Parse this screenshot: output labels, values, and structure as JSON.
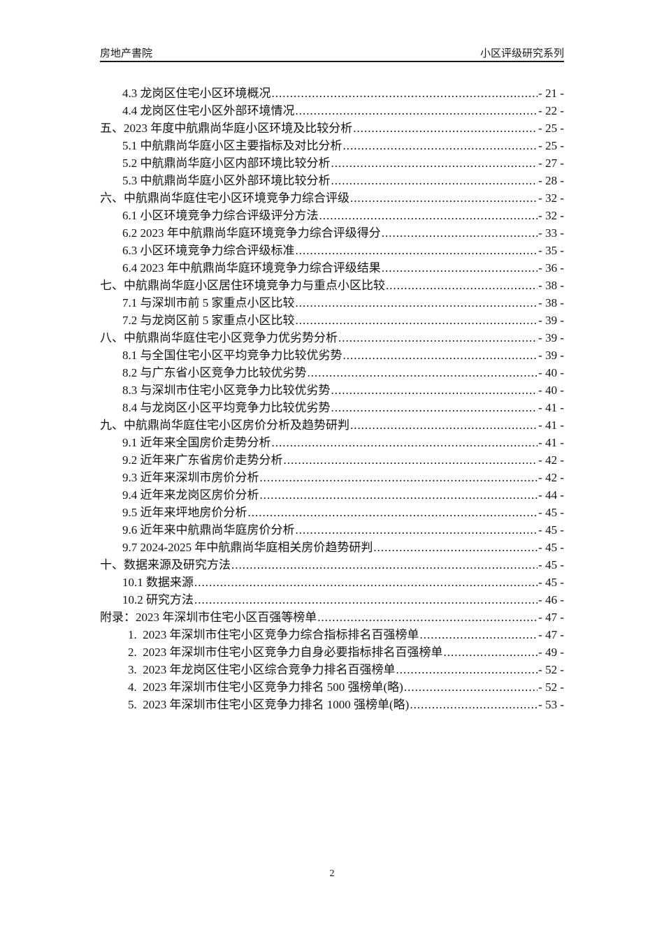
{
  "colors": {
    "background": "#ffffff",
    "text": "#111111",
    "header_rule": "#1a1a1a"
  },
  "header": {
    "left_text": "房地产書院",
    "right_text": "小区评级研究系列"
  },
  "footer": {
    "page_number": "2"
  },
  "toc": {
    "entries": [
      {
        "level": 2,
        "label": "4.3 龙岗区住宅小区环境概况",
        "page": "- 21 -"
      },
      {
        "level": 2,
        "label": "4.4 龙岗区住宅小区外部环境情况",
        "page": "- 22 -"
      },
      {
        "level": 1,
        "label": "五、2023 年度中航鼎尚华庭小区环境及比较分析",
        "page": "- 25 -"
      },
      {
        "level": 2,
        "label": "5.1 中航鼎尚华庭小区主要指标及对比分析",
        "page": "- 25 -"
      },
      {
        "level": 2,
        "label": "5.2 中航鼎尚华庭小区内部环境比较分析",
        "page": "- 27 -"
      },
      {
        "level": 2,
        "label": "5.3 中航鼎尚华庭小区外部环境比较分析",
        "page": "- 28 -"
      },
      {
        "level": 1,
        "label": "六、中航鼎尚华庭住宅小区环境竞争力综合评级",
        "page": "- 32 -"
      },
      {
        "level": 2,
        "label": "6.1 小区环境竞争力综合评级评分方法",
        "page": "- 32 -"
      },
      {
        "level": 2,
        "label": "6.2 2023 年中航鼎尚华庭环境竞争力综合评级得分",
        "page": "- 33 -"
      },
      {
        "level": 2,
        "label": "6.3 小区环境竞争力综合评级标准",
        "page": "- 35 -"
      },
      {
        "level": 2,
        "label": "6.4 2023 年中航鼎尚华庭环境竞争力综合评级结果",
        "page": "- 36 -"
      },
      {
        "level": 1,
        "label": "七、中航鼎尚华庭小区居住环境竞争力与重点小区比较",
        "page": "- 38 -"
      },
      {
        "level": 2,
        "label": "7.1 与深圳市前 5 家重点小区比较",
        "page": "- 38 -"
      },
      {
        "level": 2,
        "label": "7.2 与龙岗区前 5 家重点小区比较",
        "page": "- 39 -"
      },
      {
        "level": 1,
        "label": "八、中航鼎尚华庭住宅小区竞争力优劣势分析",
        "page": "- 39 -"
      },
      {
        "level": 2,
        "label": "8.1 与全国住宅小区平均竞争力比较优劣势",
        "page": "- 39 -"
      },
      {
        "level": 2,
        "label": "8.2 与广东省小区竞争力比较优劣势",
        "page": "- 40 -"
      },
      {
        "level": 2,
        "label": "8.3 与深圳市住宅小区竞争力比较优劣势",
        "page": "- 40 -"
      },
      {
        "level": 2,
        "label": "8.4 与龙岗区小区平均竞争力比较优劣势",
        "page": "- 41 -"
      },
      {
        "level": 1,
        "label": "九、中航鼎尚华庭住宅小区房价分析及趋势研判",
        "page": "- 41 -"
      },
      {
        "level": 2,
        "label": "9.1 近年来全国房价走势分析",
        "page": "- 41 -"
      },
      {
        "level": 2,
        "label": "9.2 近年来广东省房价走势分析",
        "page": "- 42 -"
      },
      {
        "level": 2,
        "label": "9.3 近年来深圳市房价分析",
        "page": "- 42 -"
      },
      {
        "level": 2,
        "label": "9.4 近年来龙岗区房价分析",
        "page": "- 44 -"
      },
      {
        "level": 2,
        "label": "9.5 近年来坪地房价分析",
        "page": "- 45 -"
      },
      {
        "level": 2,
        "label": "9.6 近年来中航鼎尚华庭房价分析",
        "page": "- 45 -"
      },
      {
        "level": 2,
        "label": "9.7 2024-2025 年中航鼎尚华庭相关房价趋势研判",
        "page": "- 45 -"
      },
      {
        "level": 1,
        "label": "十、数据来源及研究方法",
        "page": "- 45 -"
      },
      {
        "level": 2,
        "label": "10.1 数据来源",
        "page": "- 45 -"
      },
      {
        "level": 2,
        "label": "10.2 研究方法",
        "page": "- 46 -"
      },
      {
        "level": 1,
        "label": "附录：2023 年深圳市住宅小区百强等榜单",
        "page": "- 47 -"
      },
      {
        "level": 3,
        "label": "1.  2023 年深圳市住宅小区竞争力综合指标排名百强榜单",
        "page": "- 47 -"
      },
      {
        "level": 3,
        "label": "2.  2023 年深圳市住宅小区竞争力自身必要指标排名百强榜单",
        "page": "- 49 -"
      },
      {
        "level": 3,
        "label": "3.  2023 年龙岗区住宅小区综合竞争力排名百强榜单",
        "page": "- 52 -"
      },
      {
        "level": 3,
        "label": "4.  2023 年深圳市住宅小区竞争力排名 500 强榜单(略)",
        "page": "- 52 -"
      },
      {
        "level": 3,
        "label": "5.  2023 年深圳市住宅小区竞争力排名 1000 强榜单(略)",
        "page": "- 53 -"
      }
    ]
  }
}
